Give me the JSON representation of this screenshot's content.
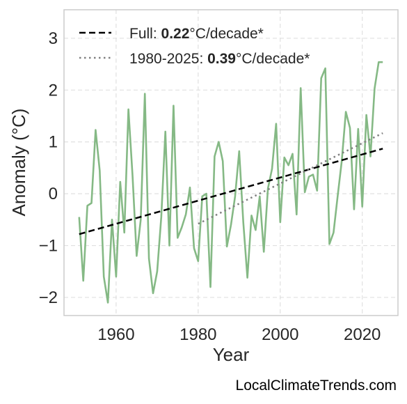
{
  "chart_data": {
    "type": "line",
    "xlabel": "Year",
    "ylabel": "Anomaly (°C)",
    "xlim": [
      1947.3,
      2028.7
    ],
    "ylim": [
      -2.35,
      3.55
    ],
    "x_ticks": [
      1960,
      1980,
      2000,
      2020
    ],
    "y_ticks": [
      -2,
      -1,
      0,
      1,
      2,
      3
    ],
    "y_tick_labels": [
      "−2",
      "−1",
      "0",
      "1",
      "2",
      "3"
    ],
    "grid": true,
    "legend_position": "top-left",
    "series": [
      {
        "color": "#85b985",
        "style": "solid",
        "x": [
          1951,
          1952,
          1953,
          1954,
          1955,
          1956,
          1957,
          1958,
          1959,
          1960,
          1961,
          1962,
          1963,
          1964,
          1965,
          1966,
          1967,
          1968,
          1969,
          1970,
          1971,
          1972,
          1973,
          1974,
          1975,
          1976,
          1977,
          1978,
          1979,
          1980,
          1981,
          1982,
          1983,
          1984,
          1985,
          1986,
          1987,
          1988,
          1989,
          1990,
          1991,
          1992,
          1993,
          1994,
          1995,
          1996,
          1997,
          1998,
          1999,
          2000,
          2001,
          2002,
          2003,
          2004,
          2005,
          2006,
          2007,
          2008,
          2009,
          2010,
          2011,
          2012,
          2013,
          2014,
          2015,
          2016,
          2017,
          2018,
          2019,
          2020,
          2021,
          2022,
          2023,
          2024,
          2025
        ],
        "values": [
          -0.45,
          -1.68,
          -0.23,
          -0.18,
          1.23,
          0.45,
          -1.6,
          -2.1,
          -0.5,
          -1.6,
          0.23,
          -0.75,
          1.63,
          0.35,
          -1.2,
          -0.5,
          1.93,
          -1.25,
          -1.92,
          -1.5,
          -0.45,
          1.2,
          -1.0,
          1.7,
          -0.85,
          -0.65,
          -0.4,
          0.12,
          -1.05,
          -1.3,
          -0.05,
          0.0,
          -1.8,
          0.72,
          1.0,
          0.63,
          -1.02,
          -0.6,
          -0.05,
          0.82,
          -0.55,
          -1.62,
          -0.42,
          -0.7,
          -0.05,
          -1.12,
          0.1,
          0.48,
          1.35,
          -0.55,
          0.7,
          0.55,
          0.77,
          -0.4,
          2.04,
          0.03,
          0.33,
          0.37,
          0.06,
          2.23,
          2.42,
          -0.97,
          -0.75,
          -0.05,
          0.63,
          1.58,
          1.27,
          -0.3,
          1.25,
          -0.25,
          1.52,
          0.72,
          2.03,
          2.54,
          2.54
        ]
      },
      {
        "name": "Full",
        "color": "#000000",
        "style": "dashed",
        "x": [
          1951,
          2025
        ],
        "values": [
          -0.78,
          0.87
        ],
        "rate": "0.22",
        "rate_unit": "°C/decade*"
      },
      {
        "name": "1980-2025",
        "color": "#808080",
        "style": "dotted",
        "x": [
          1980,
          2025
        ],
        "values": [
          -0.58,
          1.17
        ],
        "rate": "0.39",
        "rate_unit": "°C/decade*"
      }
    ]
  },
  "credit": "LocalClimateTrends.com"
}
